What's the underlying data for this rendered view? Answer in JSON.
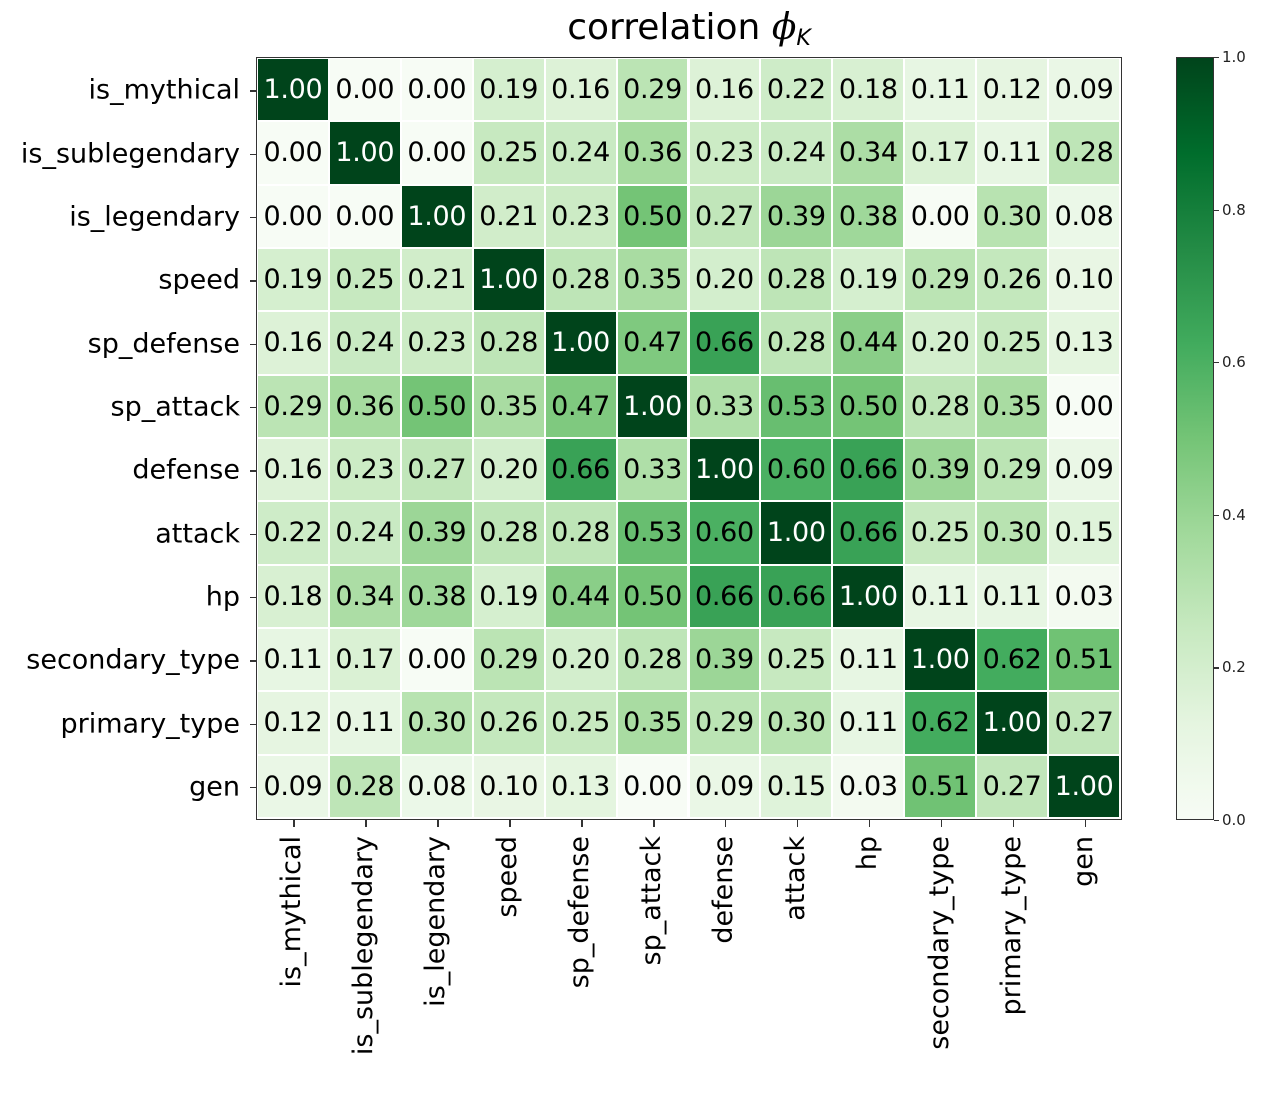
{
  "chart_data": {
    "type": "heatmap",
    "title": "correlation ϕK",
    "title_main": "correlation ",
    "title_symbol": "ϕ",
    "title_subscript": "K",
    "xlabel": "",
    "ylabel": "",
    "colormap": "Greens",
    "vmin": 0.0,
    "vmax": 1.0,
    "grid": false,
    "legend_position": "colorbar-right",
    "row_labels": [
      "is_mythical",
      "is_sublegendary",
      "is_legendary",
      "speed",
      "sp_defense",
      "sp_attack",
      "defense",
      "attack",
      "hp",
      "secondary_type",
      "primary_type",
      "gen"
    ],
    "col_labels": [
      "is_mythical",
      "is_sublegendary",
      "is_legendary",
      "speed",
      "sp_defense",
      "sp_attack",
      "defense",
      "attack",
      "hp",
      "secondary_type",
      "primary_type",
      "gen"
    ],
    "values": [
      [
        1.0,
        0.0,
        0.0,
        0.19,
        0.16,
        0.29,
        0.16,
        0.22,
        0.18,
        0.11,
        0.12,
        0.09
      ],
      [
        0.0,
        1.0,
        0.0,
        0.25,
        0.24,
        0.36,
        0.23,
        0.24,
        0.34,
        0.17,
        0.11,
        0.28
      ],
      [
        0.0,
        0.0,
        1.0,
        0.21,
        0.23,
        0.5,
        0.27,
        0.39,
        0.38,
        0.0,
        0.3,
        0.08
      ],
      [
        0.19,
        0.25,
        0.21,
        1.0,
        0.28,
        0.35,
        0.2,
        0.28,
        0.19,
        0.29,
        0.26,
        0.1
      ],
      [
        0.16,
        0.24,
        0.23,
        0.28,
        1.0,
        0.47,
        0.66,
        0.28,
        0.44,
        0.2,
        0.25,
        0.13
      ],
      [
        0.29,
        0.36,
        0.5,
        0.35,
        0.47,
        1.0,
        0.33,
        0.53,
        0.5,
        0.28,
        0.35,
        0.0
      ],
      [
        0.16,
        0.23,
        0.27,
        0.2,
        0.66,
        0.33,
        1.0,
        0.6,
        0.66,
        0.39,
        0.29,
        0.09
      ],
      [
        0.22,
        0.24,
        0.39,
        0.28,
        0.28,
        0.53,
        0.6,
        1.0,
        0.66,
        0.25,
        0.3,
        0.15
      ],
      [
        0.18,
        0.34,
        0.38,
        0.19,
        0.44,
        0.5,
        0.66,
        0.66,
        1.0,
        0.11,
        0.11,
        0.03
      ],
      [
        0.11,
        0.17,
        0.0,
        0.29,
        0.2,
        0.28,
        0.39,
        0.25,
        0.11,
        1.0,
        0.62,
        0.51
      ],
      [
        0.12,
        0.11,
        0.3,
        0.26,
        0.25,
        0.35,
        0.29,
        0.3,
        0.11,
        0.62,
        1.0,
        0.27
      ],
      [
        0.09,
        0.28,
        0.08,
        0.1,
        0.13,
        0.0,
        0.09,
        0.15,
        0.03,
        0.51,
        0.27,
        1.0
      ]
    ],
    "value_format": "0.00",
    "colorbar": {
      "ticks": [
        0.0,
        0.2,
        0.4,
        0.6,
        0.8,
        1.0
      ],
      "tick_labels": [
        "0.0",
        "0.2",
        "0.4",
        "0.6",
        "0.8",
        "1.0"
      ]
    }
  },
  "colors": {
    "greens_low": "#f7fcf5",
    "greens_high": "#00441b",
    "text_dark": "#000000",
    "text_light": "#ffffff"
  }
}
